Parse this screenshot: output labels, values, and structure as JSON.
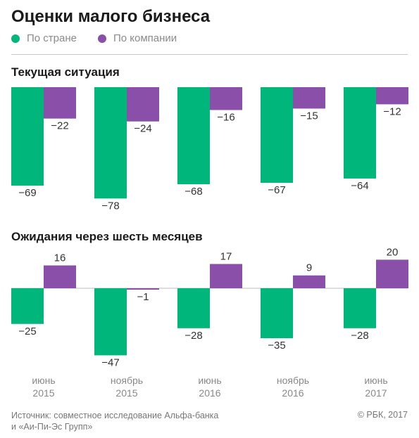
{
  "title": "Оценки малого бизнеса",
  "legend": [
    {
      "label": "По стране",
      "color": "#00b67a"
    },
    {
      "label": "По компании",
      "color": "#8a4fa8"
    }
  ],
  "sections": {
    "current": "Текущая ситуация",
    "expect": "Ожидания через шесть месяцев"
  },
  "footer": {
    "source_line1": "Источник: совместное исследование Альфа-банка",
    "source_line2": "и «Аи-Пи-Эс Групп»",
    "copyright": "© РБК, 2017"
  },
  "chart_data": [
    {
      "type": "bar",
      "title": "Текущая ситуация",
      "categories": [
        "июнь 2015",
        "ноябрь 2015",
        "июнь 2016",
        "ноябрь 2016",
        "июнь 2017"
      ],
      "series": [
        {
          "name": "По стране",
          "color": "#00b67a",
          "values": [
            -69,
            -78,
            -68,
            -67,
            -64
          ]
        },
        {
          "name": "По компании",
          "color": "#8a4fa8",
          "values": [
            -22,
            -24,
            -16,
            -15,
            -12
          ]
        }
      ]
    },
    {
      "type": "bar",
      "title": "Ожидания через шесть месяцев",
      "categories": [
        "июнь 2015",
        "ноябрь 2015",
        "июнь 2016",
        "ноябрь 2016",
        "июнь 2017"
      ],
      "series": [
        {
          "name": "По стране",
          "color": "#00b67a",
          "values": [
            -25,
            -47,
            -28,
            -35,
            -28
          ]
        },
        {
          "name": "По компании",
          "color": "#8a4fa8",
          "values": [
            16,
            -1,
            17,
            9,
            20
          ]
        }
      ]
    }
  ],
  "x_labels": [
    {
      "month": "июнь",
      "year": "2015"
    },
    {
      "month": "ноябрь",
      "year": "2015"
    },
    {
      "month": "июнь",
      "year": "2016"
    },
    {
      "month": "ноябрь",
      "year": "2016"
    },
    {
      "month": "июнь",
      "year": "2017"
    }
  ]
}
